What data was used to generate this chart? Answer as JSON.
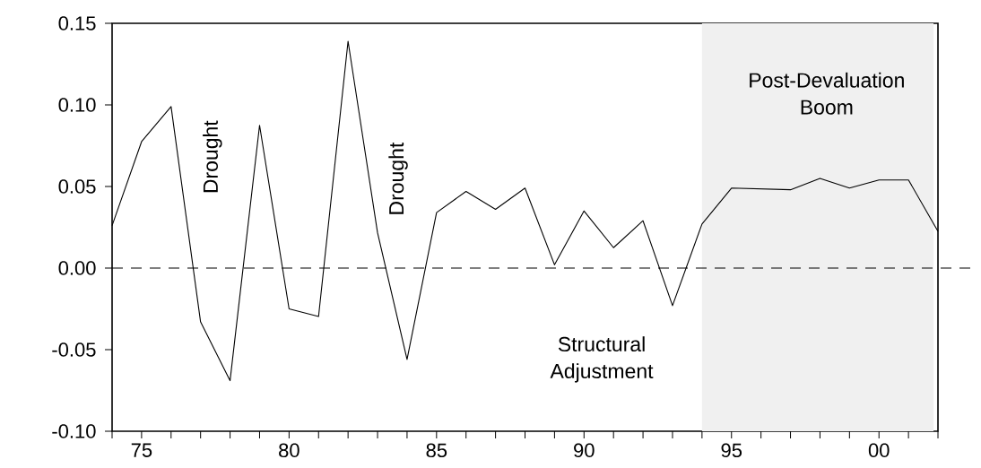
{
  "chart_data": {
    "type": "line",
    "x": [
      1974,
      1975,
      1976,
      1977,
      1978,
      1979,
      1980,
      1981,
      1982,
      1983,
      1984,
      1985,
      1986,
      1987,
      1988,
      1989,
      1990,
      1991,
      1992,
      1993,
      1994,
      1995,
      1996,
      1997,
      1998,
      1999,
      2000,
      2001,
      2002
    ],
    "series": [
      {
        "color": "#000000",
        "values": [
          0.026,
          0.0775,
          0.099,
          -0.033,
          -0.069,
          0.0875,
          -0.025,
          -0.0297,
          0.139,
          0.0216,
          -0.056,
          0.034,
          0.047,
          0.036,
          0.049,
          0.002,
          0.035,
          0.0125,
          0.029,
          -0.023,
          0.027,
          0.049,
          0.0485,
          0.048,
          0.055,
          0.049,
          0.054,
          0.054,
          0.0225
        ]
      }
    ],
    "xlim": [
      1974,
      2002
    ],
    "xticks": [
      {
        "value": 1974,
        "label": null
      },
      {
        "value": 1975,
        "label": "75"
      },
      {
        "value": 1976,
        "label": null
      },
      {
        "value": 1977,
        "label": null
      },
      {
        "value": 1978,
        "label": null
      },
      {
        "value": 1979,
        "label": null
      },
      {
        "value": 1980,
        "label": "80"
      },
      {
        "value": 1981,
        "label": null
      },
      {
        "value": 1982,
        "label": null
      },
      {
        "value": 1983,
        "label": null
      },
      {
        "value": 1984,
        "label": null
      },
      {
        "value": 1985,
        "label": "85"
      },
      {
        "value": 1986,
        "label": null
      },
      {
        "value": 1987,
        "label": null
      },
      {
        "value": 1988,
        "label": null
      },
      {
        "value": 1989,
        "label": null
      },
      {
        "value": 1990,
        "label": "90"
      },
      {
        "value": 1991,
        "label": null
      },
      {
        "value": 1992,
        "label": null
      },
      {
        "value": 1993,
        "label": null
      },
      {
        "value": 1994,
        "label": null
      },
      {
        "value": 1995,
        "label": "95"
      },
      {
        "value": 1996,
        "label": null
      },
      {
        "value": 1997,
        "label": null
      },
      {
        "value": 1998,
        "label": null
      },
      {
        "value": 1999,
        "label": null
      },
      {
        "value": 2000,
        "label": "00"
      },
      {
        "value": 2001,
        "label": null
      },
      {
        "value": 2002,
        "label": null
      }
    ],
    "ylim": [
      -0.1,
      0.15
    ],
    "yticks": [
      {
        "value": -0.1,
        "label": "-0.10"
      },
      {
        "value": -0.05,
        "label": "-0.05"
      },
      {
        "value": 0,
        "label": "0.00"
      },
      {
        "value": 0.05,
        "label": "0.05"
      },
      {
        "value": 0.1,
        "label": "0.10"
      },
      {
        "value": 0.15,
        "label": "0.15"
      }
    ],
    "ref_lines": [
      {
        "axis": "y",
        "value": 0,
        "line_style": "dashed",
        "color": "#000000"
      }
    ],
    "bands": [
      {
        "axis": "x",
        "from": 1994,
        "to": 2001.85,
        "label": "Post-Devaluation Boom",
        "color": "#f0f0f0"
      }
    ],
    "annotations": [
      "Drought",
      "Drought",
      "Structural Adjustment"
    ],
    "grid": false,
    "marker": "none",
    "line_style": "solid"
  }
}
